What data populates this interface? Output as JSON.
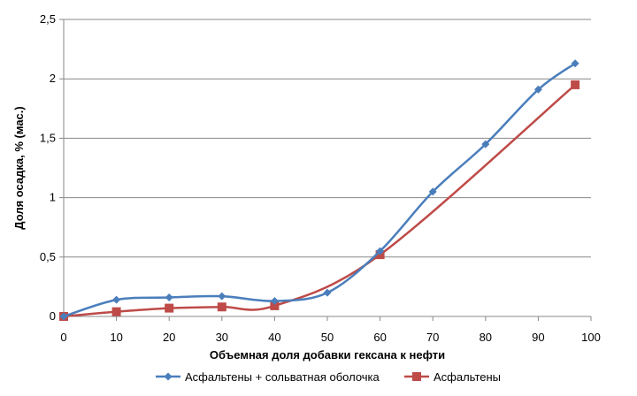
{
  "chart_data": {
    "type": "line",
    "title": "",
    "xlabel": "Объемная доля добавки гексана к нефти",
    "ylabel": "Доля осадка, % (мас.)",
    "xlim": [
      0,
      100
    ],
    "ylim": [
      0,
      2.5
    ],
    "x_ticks": [
      0,
      10,
      20,
      30,
      40,
      50,
      60,
      70,
      80,
      90,
      100
    ],
    "x_tick_labels": [
      "0",
      "10",
      "20",
      "30",
      "40",
      "50",
      "60",
      "70",
      "80",
      "90",
      "100"
    ],
    "y_ticks": [
      0,
      0.5,
      1,
      1.5,
      2,
      2.5
    ],
    "y_tick_labels": [
      "0",
      "0,5",
      "1",
      "1,5",
      "2",
      "2,5"
    ],
    "grid": "horizontal",
    "legend_position": "bottom",
    "series": [
      {
        "name": "Асфальтены + сольватная оболочка",
        "color": "#4a7ebb",
        "marker": "diamond",
        "x": [
          0,
          10,
          20,
          30,
          40,
          50,
          60,
          70,
          80,
          90,
          97
        ],
        "y": [
          0,
          0.14,
          0.16,
          0.17,
          0.13,
          0.2,
          0.55,
          1.05,
          1.45,
          1.91,
          2.13
        ]
      },
      {
        "name": "Асфальтены",
        "color": "#be4b48",
        "marker": "square",
        "x": [
          0,
          10,
          20,
          30,
          40,
          60,
          97
        ],
        "y": [
          0,
          0.04,
          0.07,
          0.08,
          0.09,
          0.52,
          1.95
        ]
      }
    ]
  }
}
